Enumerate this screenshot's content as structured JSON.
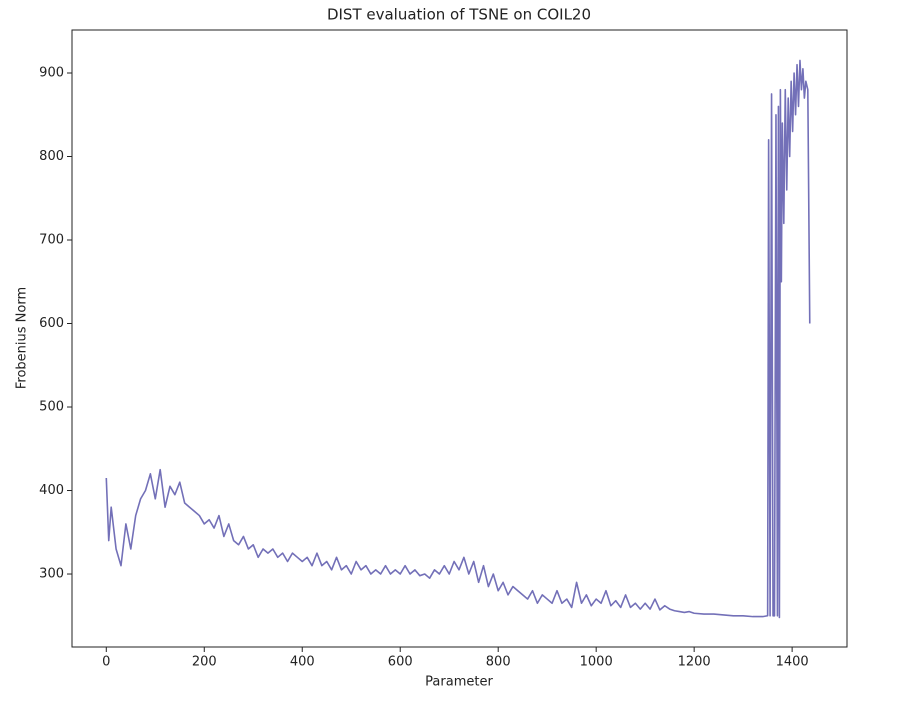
{
  "chart_data": {
    "type": "line",
    "title": "DIST evaluation of TSNE on COIL20",
    "x_label": "Parameter",
    "y_label": "Frobenius Norm",
    "x": [
      0,
      5,
      10,
      20,
      30,
      40,
      50,
      60,
      70,
      80,
      90,
      100,
      110,
      120,
      130,
      140,
      150,
      160,
      170,
      180,
      190,
      200,
      210,
      220,
      230,
      240,
      250,
      260,
      270,
      280,
      290,
      300,
      310,
      320,
      330,
      340,
      350,
      360,
      370,
      380,
      390,
      400,
      410,
      420,
      430,
      440,
      450,
      460,
      470,
      480,
      490,
      500,
      510,
      520,
      530,
      540,
      550,
      560,
      570,
      580,
      590,
      600,
      610,
      620,
      630,
      640,
      650,
      660,
      670,
      680,
      690,
      700,
      710,
      720,
      730,
      740,
      750,
      760,
      770,
      780,
      790,
      800,
      810,
      820,
      830,
      840,
      850,
      860,
      870,
      880,
      890,
      900,
      910,
      920,
      930,
      940,
      950,
      960,
      970,
      980,
      990,
      1000,
      1010,
      1020,
      1030,
      1040,
      1050,
      1060,
      1070,
      1080,
      1090,
      1100,
      1110,
      1120,
      1130,
      1140,
      1150,
      1160,
      1170,
      1180,
      1190,
      1200,
      1220,
      1240,
      1260,
      1280,
      1300,
      1320,
      1340,
      1350,
      1352,
      1355,
      1358,
      1361,
      1364,
      1367,
      1370,
      1372,
      1374,
      1376,
      1378,
      1380,
      1383,
      1386,
      1389,
      1392,
      1395,
      1398,
      1401,
      1404,
      1407,
      1410,
      1413,
      1416,
      1419,
      1422,
      1425,
      1428,
      1432,
      1436
    ],
    "series": [
      {
        "name": "DIST",
        "color": "#7370b8",
        "values": [
          415,
          340,
          380,
          330,
          310,
          360,
          330,
          370,
          390,
          400,
          420,
          390,
          425,
          380,
          405,
          395,
          410,
          385,
          380,
          375,
          370,
          360,
          365,
          355,
          370,
          345,
          360,
          340,
          335,
          345,
          330,
          335,
          320,
          330,
          325,
          330,
          320,
          325,
          315,
          325,
          320,
          315,
          320,
          310,
          325,
          310,
          315,
          305,
          320,
          305,
          310,
          300,
          315,
          305,
          310,
          300,
          305,
          300,
          310,
          300,
          305,
          300,
          310,
          300,
          305,
          298,
          300,
          295,
          305,
          300,
          310,
          300,
          315,
          305,
          320,
          300,
          315,
          290,
          310,
          285,
          300,
          280,
          290,
          275,
          285,
          280,
          275,
          270,
          280,
          265,
          275,
          270,
          265,
          280,
          265,
          270,
          260,
          290,
          265,
          275,
          262,
          270,
          265,
          280,
          262,
          268,
          260,
          275,
          260,
          265,
          258,
          265,
          258,
          270,
          257,
          262,
          258,
          256,
          255,
          254,
          255,
          253,
          252,
          252,
          251,
          250,
          250,
          249,
          249,
          250,
          820,
          250,
          875,
          250,
          250,
          850,
          250,
          860,
          248,
          880,
          650,
          840,
          720,
          880,
          760,
          870,
          800,
          890,
          830,
          900,
          850,
          910,
          860,
          915,
          880,
          905,
          870,
          890,
          880,
          600
        ]
      }
    ],
    "xlim": [
      -70,
      1512
    ],
    "ylim": [
      212.6,
      951.5
    ],
    "xticks": [
      0,
      200,
      400,
      600,
      800,
      1000,
      1200,
      1400
    ],
    "yticks": [
      300,
      400,
      500,
      600,
      700,
      800,
      900
    ]
  }
}
